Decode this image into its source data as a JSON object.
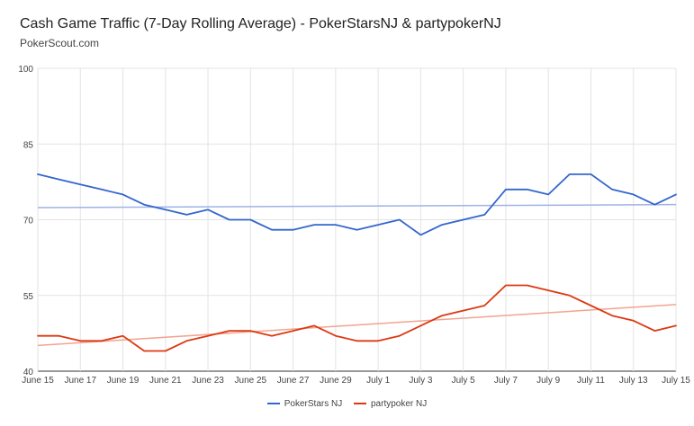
{
  "title": "Cash Game Traffic (7-Day Rolling Average) - PokerStarsNJ & partypokerNJ",
  "subtitle": "PokerScout.com",
  "colors": {
    "pokerstars": "#3366cc",
    "pokerstars_trend": "#9fb3e6",
    "partypoker": "#dc3912",
    "partypoker_trend": "#f2a48f",
    "grid": "#e3e3e3",
    "axis": "#333333"
  },
  "chart_data": {
    "type": "line",
    "x": [
      "June 15",
      "June 16",
      "June 17",
      "June 18",
      "June 19",
      "June 20",
      "June 21",
      "June 22",
      "June 23",
      "June 24",
      "June 25",
      "June 26",
      "June 27",
      "June 28",
      "June 29",
      "June 30",
      "July 1",
      "July 2",
      "July 3",
      "July 4",
      "July 5",
      "July 6",
      "July 7",
      "July 8",
      "July 9",
      "July 10",
      "July 11",
      "July 12",
      "July 13",
      "July 14",
      "July 15"
    ],
    "xticks": [
      "June 15",
      "June 17",
      "June 19",
      "June 21",
      "June 23",
      "June 25",
      "June 27",
      "June 29",
      "July 1",
      "July 3",
      "July 5",
      "July 7",
      "July 9",
      "July 11",
      "July 13",
      "July 15"
    ],
    "yticks": [
      "100",
      "85",
      "70",
      "55",
      "40"
    ],
    "ylim": [
      40,
      100
    ],
    "grid": true,
    "legend_position": "bottom",
    "series": [
      {
        "name": "PokerStars NJ",
        "values": [
          79,
          78,
          77,
          76,
          75,
          73,
          72,
          71,
          72,
          70,
          70,
          68,
          68,
          69,
          69,
          68,
          69,
          70,
          67,
          69,
          70,
          71,
          76,
          76,
          75,
          79,
          79,
          76,
          75,
          73,
          75
        ]
      },
      {
        "name": "partypoker NJ",
        "values": [
          47,
          47,
          46,
          46,
          47,
          44,
          44,
          46,
          47,
          48,
          48,
          47,
          48,
          49,
          47,
          46,
          46,
          47,
          49,
          51,
          52,
          53,
          57,
          57,
          56,
          55,
          53,
          51,
          50,
          48,
          49
        ]
      }
    ],
    "trendlines": [
      {
        "series": "PokerStars NJ",
        "start": 72.4,
        "end": 73.0
      },
      {
        "series": "partypoker NJ",
        "start": 45.1,
        "end": 53.2
      }
    ]
  }
}
